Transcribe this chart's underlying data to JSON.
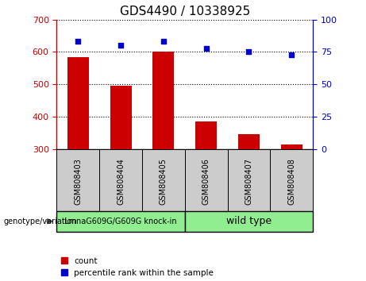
{
  "title": "GDS4490 / 10338925",
  "samples": [
    "GSM808403",
    "GSM808404",
    "GSM808405",
    "GSM808406",
    "GSM808407",
    "GSM808408"
  ],
  "counts": [
    585,
    495,
    600,
    385,
    345,
    315
  ],
  "percentiles": [
    83,
    80,
    83,
    78,
    75,
    73
  ],
  "bar_baseline": 300,
  "ylim_left": [
    300,
    700
  ],
  "ylim_right": [
    0,
    100
  ],
  "yticks_left": [
    300,
    400,
    500,
    600,
    700
  ],
  "yticks_right": [
    0,
    25,
    50,
    75,
    100
  ],
  "bar_color": "#cc0000",
  "dot_color": "#0000cc",
  "group1_label": "LmnaG609G/G609G knock-in",
  "group2_label": "wild type",
  "group_color": "#90ee90",
  "legend_count": "count",
  "legend_percentile": "percentile rank within the sample",
  "genotype_label": "genotype/variation",
  "tick_bg_color": "#cccccc",
  "title_fontsize": 11,
  "tick_label_fontsize": 7,
  "group_label_fontsize": 8
}
